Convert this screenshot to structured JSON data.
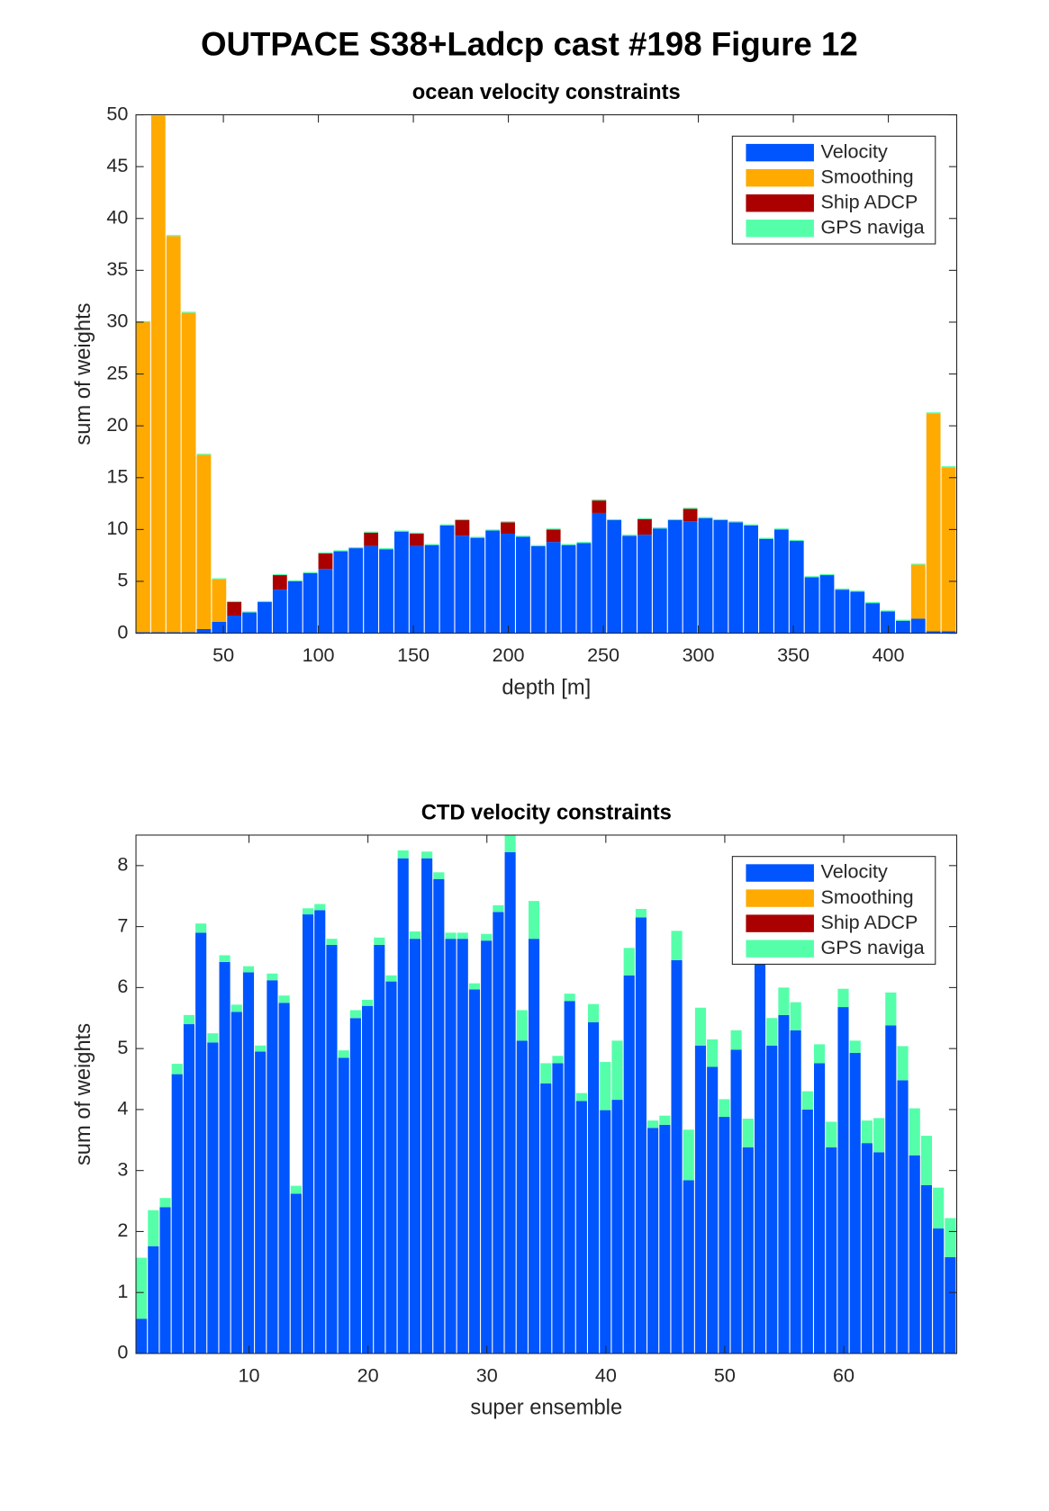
{
  "title": "OUTPACE S38+Ladcp cast #198  Figure 12",
  "chart_data": [
    {
      "type": "bar",
      "stacked": true,
      "title": "ocean velocity constraints",
      "xlabel": "depth [m]",
      "ylabel": "sum of weights",
      "legend": "northeast",
      "x": [
        8,
        16,
        24,
        32,
        40,
        48,
        56,
        64,
        72,
        80,
        88,
        96,
        104,
        112,
        120,
        128,
        136,
        144,
        152,
        160,
        168,
        176,
        184,
        192,
        200,
        208,
        216,
        224,
        232,
        240,
        248,
        256,
        264,
        272,
        280,
        288,
        296,
        304,
        312,
        320,
        328,
        336,
        344,
        352,
        360,
        368,
        376,
        384,
        392,
        400,
        408,
        416,
        424,
        432
      ],
      "xlim": [
        4,
        436
      ],
      "xticks": [
        50,
        100,
        150,
        200,
        250,
        300,
        350,
        400
      ],
      "ylim": [
        0,
        50
      ],
      "yticks": [
        0,
        5,
        10,
        15,
        20,
        25,
        30,
        35,
        40,
        45,
        50
      ],
      "series": [
        {
          "name": "Velocity",
          "color": "#0055ff",
          "values": [
            0.1,
            0.1,
            0.1,
            0.1,
            0.4,
            1.1,
            1.7,
            2.0,
            3.0,
            4.2,
            5.0,
            5.8,
            6.2,
            7.9,
            8.2,
            8.4,
            8.1,
            9.8,
            8.4,
            8.5,
            10.4,
            9.4,
            9.2,
            9.9,
            9.6,
            9.3,
            8.4,
            8.8,
            8.5,
            8.7,
            11.6,
            10.9,
            9.4,
            9.5,
            10.1,
            10.9,
            10.8,
            11.1,
            10.9,
            10.7,
            10.4,
            9.1,
            10.0,
            8.9,
            5.4,
            5.6,
            4.2,
            4.0,
            2.9,
            2.1,
            1.2,
            1.4,
            0.2,
            0.2
          ]
        },
        {
          "name": "Smoothing",
          "color": "#ffaa00",
          "values": [
            29.9,
            49.8,
            38.2,
            30.8,
            16.8,
            4.1,
            0,
            0,
            0,
            0,
            0,
            0,
            0,
            0,
            0,
            0,
            0,
            0,
            0,
            0,
            0,
            0,
            0,
            0,
            0,
            0,
            0,
            0,
            0,
            0,
            0,
            0,
            0,
            0,
            0,
            0,
            0,
            0,
            0,
            0,
            0,
            0,
            0,
            0,
            0,
            0,
            0,
            0,
            0,
            0,
            0,
            5.2,
            21.0,
            15.8
          ]
        },
        {
          "name": "Ship ADCP",
          "color": "#aa0000",
          "values": [
            0,
            0,
            0,
            0,
            0,
            0,
            1.3,
            0,
            0,
            1.4,
            0,
            0,
            1.5,
            0,
            0,
            1.3,
            0,
            0,
            1.2,
            0,
            0,
            1.5,
            0,
            0,
            1.1,
            0,
            0,
            1.2,
            0,
            0,
            1.2,
            0,
            0,
            1.5,
            0,
            0,
            1.2,
            0,
            0,
            0,
            0,
            0,
            0,
            0,
            0,
            0,
            0,
            0,
            0,
            0,
            0,
            0,
            0,
            0
          ]
        },
        {
          "name": "GPS naviga",
          "color": "#55ffaa",
          "values": [
            0.1,
            0.1,
            0.1,
            0.1,
            0.1,
            0.1,
            0.1,
            0.1,
            0.1,
            0.1,
            0.1,
            0.1,
            0.1,
            0.1,
            0.1,
            0.1,
            0.1,
            0.1,
            0.1,
            0.1,
            0.1,
            0.1,
            0.1,
            0.1,
            0.1,
            0.1,
            0.1,
            0.1,
            0.1,
            0.1,
            0.1,
            0.1,
            0.1,
            0.1,
            0.1,
            0.1,
            0.1,
            0.1,
            0.1,
            0.1,
            0.1,
            0.1,
            0.1,
            0.1,
            0.1,
            0.1,
            0.1,
            0.1,
            0.1,
            0.1,
            0.1,
            0.1,
            0.1,
            0.1
          ]
        }
      ]
    },
    {
      "type": "bar",
      "stacked": true,
      "title": "CTD velocity constraints",
      "xlabel": "super ensemble",
      "ylabel": "sum of weights",
      "legend": "northeast",
      "x": [
        1,
        2,
        3,
        4,
        5,
        6,
        7,
        8,
        9,
        10,
        11,
        12,
        13,
        14,
        15,
        16,
        17,
        18,
        19,
        20,
        21,
        22,
        23,
        24,
        25,
        26,
        27,
        28,
        29,
        30,
        31,
        32,
        33,
        34,
        35,
        36,
        37,
        38,
        39,
        40,
        41,
        42,
        43,
        44,
        45,
        46,
        47,
        48,
        49,
        50,
        51,
        52,
        53,
        54,
        55,
        56,
        57,
        58,
        59,
        60,
        61,
        62,
        63,
        64,
        65,
        66,
        67,
        68,
        69
      ],
      "xlim": [
        0.5,
        69.5
      ],
      "xticks": [
        10,
        20,
        30,
        40,
        50,
        60
      ],
      "ylim": [
        0,
        8.5
      ],
      "yticks": [
        0,
        1,
        2,
        3,
        4,
        5,
        6,
        7,
        8
      ],
      "series": [
        {
          "name": "Velocity",
          "color": "#0055ff",
          "values": [
            0.57,
            1.76,
            2.4,
            4.58,
            5.4,
            6.9,
            5.1,
            6.42,
            5.6,
            6.25,
            4.95,
            6.12,
            5.75,
            2.62,
            7.2,
            7.27,
            6.7,
            4.85,
            5.5,
            5.7,
            6.7,
            6.1,
            8.12,
            6.8,
            8.12,
            7.78,
            6.8,
            6.8,
            5.97,
            6.77,
            7.24,
            8.22,
            5.13,
            6.8,
            4.43,
            4.76,
            5.78,
            4.14,
            5.43,
            3.99,
            4.16,
            6.2,
            7.15,
            3.7,
            3.75,
            6.45,
            2.84,
            5.05,
            4.7,
            3.88,
            4.98,
            3.38,
            6.4,
            5.05,
            5.55,
            5.3,
            4.0,
            4.76,
            3.38,
            5.68,
            4.93,
            3.45,
            3.3,
            5.38,
            4.48,
            3.25,
            2.76,
            2.05,
            1.58
          ]
        },
        {
          "name": "Smoothing",
          "color": "#ffaa00",
          "values": [
            0,
            0,
            0,
            0,
            0,
            0,
            0,
            0,
            0,
            0,
            0,
            0,
            0,
            0,
            0,
            0,
            0,
            0,
            0,
            0,
            0,
            0,
            0,
            0,
            0,
            0,
            0,
            0,
            0,
            0,
            0,
            0,
            0,
            0,
            0,
            0,
            0,
            0,
            0,
            0,
            0,
            0,
            0,
            0,
            0,
            0,
            0,
            0,
            0,
            0,
            0,
            0,
            0,
            0,
            0,
            0,
            0,
            0,
            0,
            0,
            0,
            0,
            0,
            0,
            0,
            0,
            0,
            0,
            0
          ]
        },
        {
          "name": "Ship ADCP",
          "color": "#aa0000",
          "values": [
            0,
            0,
            0,
            0,
            0,
            0,
            0,
            0,
            0,
            0,
            0,
            0,
            0,
            0,
            0,
            0,
            0,
            0,
            0,
            0,
            0,
            0,
            0,
            0,
            0,
            0,
            0,
            0,
            0,
            0,
            0,
            0,
            0,
            0,
            0,
            0,
            0,
            0,
            0,
            0,
            0,
            0,
            0,
            0,
            0,
            0,
            0,
            0,
            0,
            0,
            0,
            0,
            0,
            0,
            0,
            0,
            0,
            0,
            0,
            0,
            0,
            0,
            0,
            0,
            0,
            0,
            0,
            0,
            0
          ]
        },
        {
          "name": "GPS naviga",
          "color": "#55ffaa",
          "values": [
            1.0,
            0.59,
            0.15,
            0.17,
            0.15,
            0.15,
            0.15,
            0.11,
            0.12,
            0.1,
            0.1,
            0.11,
            0.12,
            0.13,
            0.1,
            0.1,
            0.1,
            0.12,
            0.13,
            0.1,
            0.12,
            0.1,
            0.13,
            0.12,
            0.11,
            0.11,
            0.1,
            0.1,
            0.1,
            0.11,
            0.11,
            0.28,
            0.5,
            0.62,
            0.33,
            0.12,
            0.12,
            0.13,
            0.3,
            0.79,
            0.97,
            0.45,
            0.14,
            0.12,
            0.15,
            0.48,
            0.83,
            0.62,
            0.45,
            0.29,
            0.32,
            0.47,
            0.15,
            0.45,
            0.45,
            0.46,
            0.3,
            0.31,
            0.42,
            0.3,
            0.2,
            0.37,
            0.56,
            0.54,
            0.56,
            0.77,
            0.81,
            0.67,
            0.64
          ]
        }
      ]
    }
  ]
}
